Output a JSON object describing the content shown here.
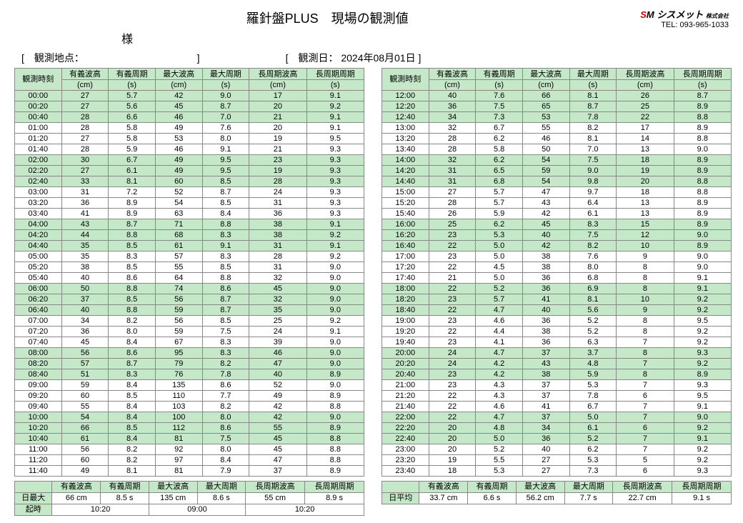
{
  "title": "羅針盤PLUS　現場の観測値",
  "sub_title": "様",
  "company_logo": "シスメット",
  "company_suffix": "株式会社",
  "tel_label": "TEL:",
  "tel": "093-965-1033",
  "obs_point_label": "[　観測地点：",
  "obs_point_close": "]",
  "obs_date_label": "[　観測日：",
  "obs_date": "2024年08月01日",
  "obs_date_close": "]",
  "columns": [
    "観測時刻",
    "有義波高",
    "有義周期",
    "最大波高",
    "最大周期",
    "長周期波高",
    "長周期周期"
  ],
  "units": [
    "",
    "(cm)",
    "(s)",
    "(cm)",
    "(s)",
    "(cm)",
    "(s)"
  ],
  "left_rows": [
    [
      "00:00",
      "27",
      "5.7",
      "42",
      "9.0",
      "17",
      "9.1"
    ],
    [
      "00:20",
      "27",
      "5.6",
      "45",
      "8.7",
      "20",
      "9.2"
    ],
    [
      "00:40",
      "28",
      "6.6",
      "46",
      "7.0",
      "21",
      "9.1"
    ],
    [
      "01:00",
      "28",
      "5.8",
      "49",
      "7.6",
      "20",
      "9.1"
    ],
    [
      "01:20",
      "27",
      "5.8",
      "53",
      "8.0",
      "19",
      "9.5"
    ],
    [
      "01:40",
      "28",
      "5.9",
      "46",
      "9.1",
      "21",
      "9.3"
    ],
    [
      "02:00",
      "30",
      "6.7",
      "49",
      "9.5",
      "23",
      "9.3"
    ],
    [
      "02:20",
      "27",
      "6.1",
      "49",
      "9.5",
      "19",
      "9.3"
    ],
    [
      "02:40",
      "33",
      "8.1",
      "60",
      "8.5",
      "28",
      "9.3"
    ],
    [
      "03:00",
      "31",
      "7.2",
      "52",
      "8.7",
      "24",
      "9.3"
    ],
    [
      "03:20",
      "36",
      "8.9",
      "54",
      "8.5",
      "31",
      "9.3"
    ],
    [
      "03:40",
      "41",
      "8.9",
      "63",
      "8.4",
      "36",
      "9.3"
    ],
    [
      "04:00",
      "43",
      "8.7",
      "71",
      "8.8",
      "38",
      "9.1"
    ],
    [
      "04:20",
      "44",
      "8.8",
      "68",
      "8.3",
      "38",
      "9.2"
    ],
    [
      "04:40",
      "35",
      "8.5",
      "61",
      "9.1",
      "31",
      "9.1"
    ],
    [
      "05:00",
      "35",
      "8.3",
      "57",
      "8.3",
      "28",
      "9.2"
    ],
    [
      "05:20",
      "38",
      "8.5",
      "55",
      "8.5",
      "31",
      "9.0"
    ],
    [
      "05:40",
      "40",
      "8.6",
      "64",
      "8.8",
      "32",
      "9.0"
    ],
    [
      "06:00",
      "50",
      "8.8",
      "74",
      "8.6",
      "45",
      "9.0"
    ],
    [
      "06:20",
      "37",
      "8.5",
      "56",
      "8.7",
      "32",
      "9.0"
    ],
    [
      "06:40",
      "40",
      "8.8",
      "59",
      "8.7",
      "35",
      "9.0"
    ],
    [
      "07:00",
      "34",
      "8.2",
      "56",
      "8.5",
      "25",
      "9.2"
    ],
    [
      "07:20",
      "36",
      "8.0",
      "59",
      "7.5",
      "24",
      "9.1"
    ],
    [
      "07:40",
      "45",
      "8.4",
      "67",
      "8.3",
      "39",
      "9.0"
    ],
    [
      "08:00",
      "56",
      "8.6",
      "95",
      "8.3",
      "46",
      "9.0"
    ],
    [
      "08:20",
      "57",
      "8.7",
      "79",
      "8.2",
      "47",
      "9.0"
    ],
    [
      "08:40",
      "51",
      "8.3",
      "76",
      "7.8",
      "40",
      "8.9"
    ],
    [
      "09:00",
      "59",
      "8.4",
      "135",
      "8.6",
      "52",
      "9.0"
    ],
    [
      "09:20",
      "60",
      "8.5",
      "110",
      "7.7",
      "49",
      "8.9"
    ],
    [
      "09:40",
      "55",
      "8.4",
      "103",
      "8.2",
      "42",
      "8.8"
    ],
    [
      "10:00",
      "54",
      "8.4",
      "100",
      "8.0",
      "42",
      "9.0"
    ],
    [
      "10:20",
      "66",
      "8.5",
      "112",
      "8.6",
      "55",
      "8.9"
    ],
    [
      "10:40",
      "61",
      "8.4",
      "81",
      "7.5",
      "45",
      "8.8"
    ],
    [
      "11:00",
      "56",
      "8.2",
      "92",
      "8.0",
      "45",
      "8.8"
    ],
    [
      "11:20",
      "60",
      "8.2",
      "97",
      "8.4",
      "47",
      "8.8"
    ],
    [
      "11:40",
      "49",
      "8.1",
      "81",
      "7.9",
      "37",
      "8.9"
    ]
  ],
  "right_rows": [
    [
      "12:00",
      "40",
      "7.6",
      "66",
      "8.1",
      "26",
      "8.7"
    ],
    [
      "12:20",
      "36",
      "7.5",
      "65",
      "8.7",
      "25",
      "8.9"
    ],
    [
      "12:40",
      "34",
      "7.3",
      "53",
      "7.8",
      "22",
      "8.8"
    ],
    [
      "13:00",
      "32",
      "6.7",
      "55",
      "8.2",
      "17",
      "8.9"
    ],
    [
      "13:20",
      "28",
      "6.2",
      "46",
      "8.1",
      "14",
      "8.8"
    ],
    [
      "13:40",
      "28",
      "5.8",
      "50",
      "7.0",
      "13",
      "9.0"
    ],
    [
      "14:00",
      "32",
      "6.2",
      "54",
      "7.5",
      "18",
      "8.9"
    ],
    [
      "14:20",
      "31",
      "6.5",
      "59",
      "9.0",
      "19",
      "8.9"
    ],
    [
      "14:40",
      "31",
      "6.8",
      "54",
      "9.8",
      "20",
      "8.8"
    ],
    [
      "15:00",
      "27",
      "5.7",
      "47",
      "9.7",
      "18",
      "8.8"
    ],
    [
      "15:20",
      "28",
      "5.7",
      "43",
      "6.4",
      "13",
      "8.9"
    ],
    [
      "15:40",
      "26",
      "5.9",
      "42",
      "6.1",
      "13",
      "8.9"
    ],
    [
      "16:00",
      "25",
      "6.2",
      "45",
      "8.3",
      "15",
      "8.9"
    ],
    [
      "16:20",
      "23",
      "5.3",
      "40",
      "7.5",
      "12",
      "9.0"
    ],
    [
      "16:40",
      "22",
      "5.0",
      "42",
      "8.2",
      "10",
      "8.9"
    ],
    [
      "17:00",
      "23",
      "5.0",
      "38",
      "7.6",
      "9",
      "9.0"
    ],
    [
      "17:20",
      "22",
      "4.5",
      "38",
      "8.0",
      "8",
      "9.0"
    ],
    [
      "17:40",
      "21",
      "5.0",
      "36",
      "6.8",
      "8",
      "9.1"
    ],
    [
      "18:00",
      "22",
      "5.2",
      "36",
      "6.9",
      "8",
      "9.1"
    ],
    [
      "18:20",
      "23",
      "5.7",
      "41",
      "8.1",
      "10",
      "9.2"
    ],
    [
      "18:40",
      "22",
      "4.7",
      "40",
      "5.6",
      "9",
      "9.2"
    ],
    [
      "19:00",
      "23",
      "4.6",
      "36",
      "5.2",
      "8",
      "9.5"
    ],
    [
      "19:20",
      "22",
      "4.4",
      "38",
      "5.2",
      "8",
      "9.2"
    ],
    [
      "19:40",
      "23",
      "4.1",
      "36",
      "6.3",
      "7",
      "9.2"
    ],
    [
      "20:00",
      "24",
      "4.7",
      "37",
      "3.7",
      "8",
      "9.3"
    ],
    [
      "20:20",
      "24",
      "4.2",
      "43",
      "4.8",
      "7",
      "9.2"
    ],
    [
      "20:40",
      "23",
      "4.2",
      "38",
      "5.9",
      "8",
      "8.9"
    ],
    [
      "21:00",
      "23",
      "4.3",
      "37",
      "5.3",
      "7",
      "9.3"
    ],
    [
      "21:20",
      "22",
      "4.3",
      "37",
      "7.8",
      "6",
      "9.5"
    ],
    [
      "21:40",
      "22",
      "4.6",
      "41",
      "6.7",
      "7",
      "9.1"
    ],
    [
      "22:00",
      "22",
      "4.7",
      "37",
      "5.0",
      "7",
      "9.0"
    ],
    [
      "22:20",
      "20",
      "4.8",
      "34",
      "6.1",
      "6",
      "9.2"
    ],
    [
      "22:40",
      "20",
      "5.0",
      "36",
      "5.2",
      "7",
      "9.1"
    ],
    [
      "23:00",
      "20",
      "5.2",
      "40",
      "6.2",
      "7",
      "9.2"
    ],
    [
      "23:20",
      "19",
      "5.5",
      "27",
      "5.3",
      "5",
      "9.2"
    ],
    [
      "23:40",
      "18",
      "5.3",
      "27",
      "7.3",
      "6",
      "9.3"
    ]
  ],
  "summary_left": {
    "headers": [
      "",
      "有義波高",
      "有義周期",
      "最大波高",
      "最大周期",
      "長周期波高",
      "長周期周期"
    ],
    "max_label": "日最大",
    "max_vals": [
      "66 cm",
      "8.5 s",
      "135 cm",
      "8.6 s",
      "55 cm",
      "8.9 s"
    ],
    "time_label": "起時",
    "time_vals": [
      "10:20",
      "09:00",
      "10:20"
    ]
  },
  "summary_right": {
    "headers": [
      "",
      "有義波高",
      "有義周期",
      "最大波高",
      "最大周期",
      "長周期波高",
      "長周期周期"
    ],
    "avg_label": "日平均",
    "avg_vals": [
      "33.7 cm",
      "6.6 s",
      "56.2 cm",
      "7.7 s",
      "22.7 cm",
      "9.1 s"
    ]
  },
  "hour_bands": [
    0,
    2,
    4,
    6,
    8,
    10,
    12,
    14,
    16,
    18,
    20,
    22
  ]
}
